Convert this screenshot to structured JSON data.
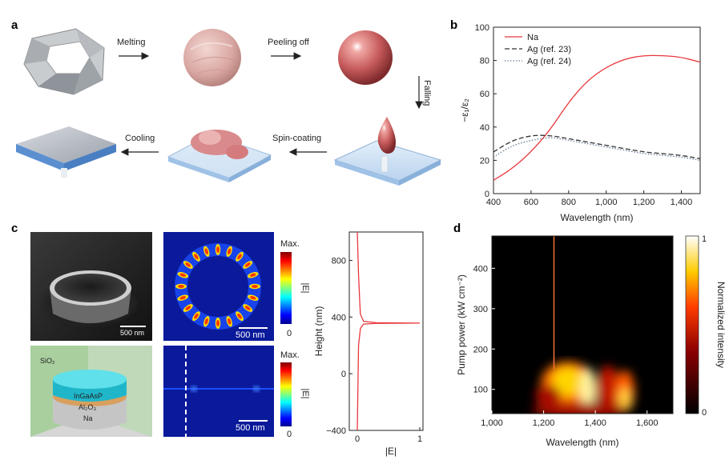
{
  "panel_letters": {
    "a": "a",
    "b": "b",
    "c": "c",
    "d": "d"
  },
  "panel_a": {
    "steps": [
      "Melting",
      "Peeling off",
      "Falling",
      "Spin-coating",
      "Cooling"
    ]
  },
  "panel_b": {
    "legend": [
      "Na",
      "Ag (ref. 23)",
      "Ag (ref. 24)"
    ],
    "ylabel": "−ε₁/ε₂",
    "xlabel": "Wavelength (nm)",
    "xticks": [
      "400",
      "600",
      "800",
      "1,000",
      "1,200",
      "1,400"
    ],
    "yticks": [
      "0",
      "20",
      "40",
      "60",
      "80",
      "100"
    ]
  },
  "panel_c": {
    "scale_sem": "500 nm",
    "scale_top": "500 nm",
    "scale_bottom": "500 nm",
    "colorbar_max": "Max.",
    "colorbar_min": "0",
    "colorbar_label": "|E|",
    "layers": {
      "sio2": "SiO₂",
      "ingaasp": "InGaAsP",
      "al2o3": "Al₂O₃",
      "na": "Na"
    },
    "profile_ylabel": "Height (nm)",
    "profile_xlabel": "|E|",
    "profile_yticks": [
      "−400",
      "0",
      "400",
      "800"
    ],
    "profile_xticks": [
      "0",
      "1"
    ]
  },
  "panel_d": {
    "ylabel": "Pump power (kW cm⁻²)",
    "xlabel": "Wavelength (nm)",
    "xticks": [
      "1,000",
      "1,200",
      "1,400",
      "1,600"
    ],
    "yticks": [
      "100",
      "200",
      "300",
      "400"
    ],
    "colorbar_label": "Normalized intensity",
    "colorbar_ticks": [
      "0",
      "1"
    ]
  },
  "colors": {
    "na": "#e8383d",
    "ag": "#333333",
    "ag2": "#6b7b9c",
    "background": "#ffffff"
  },
  "chart_data": [
    {
      "type": "line",
      "xlabel": "Wavelength (nm)",
      "ylabel": "−ε₁/ε₂",
      "xlim": [
        400,
        1500
      ],
      "ylim": [
        0,
        100
      ],
      "legend_placement": "top-left",
      "series": [
        {
          "name": "Na",
          "x": [
            400,
            500,
            600,
            700,
            800,
            900,
            1000,
            1100,
            1200,
            1300,
            1400,
            1500
          ],
          "y": [
            8,
            15,
            25,
            38,
            55,
            68,
            76,
            81,
            83,
            83,
            82,
            79
          ]
        },
        {
          "name": "Ag (ref. 23)",
          "x": [
            400,
            500,
            600,
            700,
            800,
            900,
            1000,
            1100,
            1200,
            1300,
            1400,
            1500
          ],
          "y": [
            25,
            32,
            35,
            35,
            33,
            31,
            29,
            27,
            25,
            24,
            23,
            21
          ]
        },
        {
          "name": "Ag (ref. 24)",
          "x": [
            400,
            500,
            600,
            700,
            800,
            900,
            1000,
            1100,
            1200,
            1300,
            1400,
            1500
          ],
          "y": [
            22,
            29,
            32,
            34,
            32,
            30,
            28,
            26,
            24,
            23,
            22,
            20
          ]
        }
      ]
    },
    {
      "type": "line",
      "xlabel": "|E|",
      "ylabel": "Height (nm)",
      "xlim": [
        0,
        1
      ],
      "ylim": [
        -400,
        1000
      ],
      "series": [
        {
          "x": [
            0.0,
            0.02,
            0.05,
            0.1,
            0.3,
            1.0,
            0.3,
            0.1,
            0.05,
            0.04,
            0.02,
            0.0
          ],
          "y": [
            -400,
            200,
            320,
            350,
            355,
            357,
            360,
            370,
            420,
            500,
            700,
            1000
          ]
        }
      ]
    },
    {
      "type": "heatmap",
      "xlabel": "Wavelength (nm)",
      "ylabel": "Pump power (kW cm⁻²)",
      "xlim": [
        1000,
        1700
      ],
      "ylim": [
        40,
        480
      ],
      "colorbar_range": [
        0,
        1
      ],
      "lasing_peak_wavelength": 1240
    }
  ]
}
